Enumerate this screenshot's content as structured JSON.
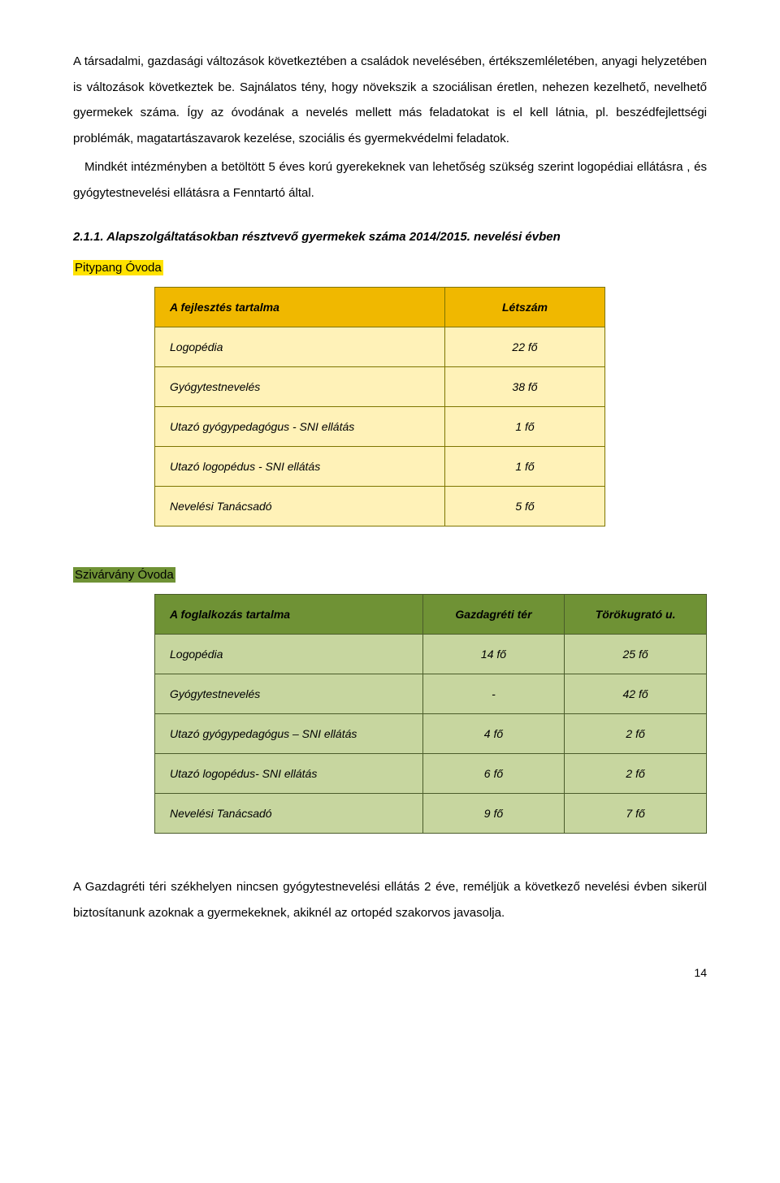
{
  "paragraphs": {
    "p1": "A társadalmi, gazdasági változások következtében a családok nevelésében, értékszemléletében, anyagi helyzetében is változások következtek be. Sajnálatos tény, hogy növekszik a szociálisan éretlen, nehezen kezelhető, nevelhető gyermekek száma. Így az óvodának a nevelés mellett más feladatokat is el kell látnia, pl. beszédfejlettségi problémák, magatartászavarok kezelése, szociális és gyermekvédelmi feladatok.",
    "p2": "Mindkét intézményben a betöltött 5 éves korú gyerekeknek van lehetőség szükség szerint logopédiai ellátásra , és gyógytestnevelési ellátásra a Fenntartó által.",
    "closing": "A Gazdagréti téri székhelyen nincsen gyógytestnevelési ellátás 2 éve, reméljük a következő nevelési évben sikerül biztosítanunk azoknak a gyermekeknek, akiknél az ortopéd szakorvos javasolja."
  },
  "sectionTitle": "2.1.1. Alapszolgáltatásokban résztvevő gyermekek száma 2014/2015. nevelési évben",
  "pitypang": {
    "label": "Pitypang Óvoda",
    "columns": [
      "A fejlesztés tartalma",
      "Létszám"
    ],
    "rows": [
      [
        "Logopédia",
        "22 fő"
      ],
      [
        "Gyógytestnevelés",
        "38 fő"
      ],
      [
        "Utazó gyógypedagógus - SNI ellátás",
        "1 fő"
      ],
      [
        "Utazó logopédus - SNI ellátás",
        "1 fő"
      ],
      [
        "Nevelési Tanácsadó",
        "5 fő"
      ]
    ],
    "style": {
      "header_bg": "#f0b800",
      "row_bg": "#fff2b8",
      "border": "#7e7500"
    }
  },
  "szivarvany": {
    "label": "Szivárvány Óvoda",
    "columns": [
      "A foglalkozás tartalma",
      "Gazdagréti tér",
      "Törökugrató u."
    ],
    "rows": [
      [
        "Logopédia",
        "14 fő",
        "25 fő"
      ],
      [
        "Gyógytestnevelés",
        "-",
        "42 fő"
      ],
      [
        "Utazó gyógypedagógus – SNI ellátás",
        "4 fő",
        "2 fő"
      ],
      [
        "Utazó logopédus- SNI ellátás",
        "6 fő",
        "2 fő"
      ],
      [
        "Nevelési Tanácsadó",
        "9 fő",
        "7 fő"
      ]
    ],
    "style": {
      "header_bg": "#6f9235",
      "row_bg": "#c7d69f",
      "border": "#4a5c2a"
    }
  },
  "pageNumber": "14"
}
